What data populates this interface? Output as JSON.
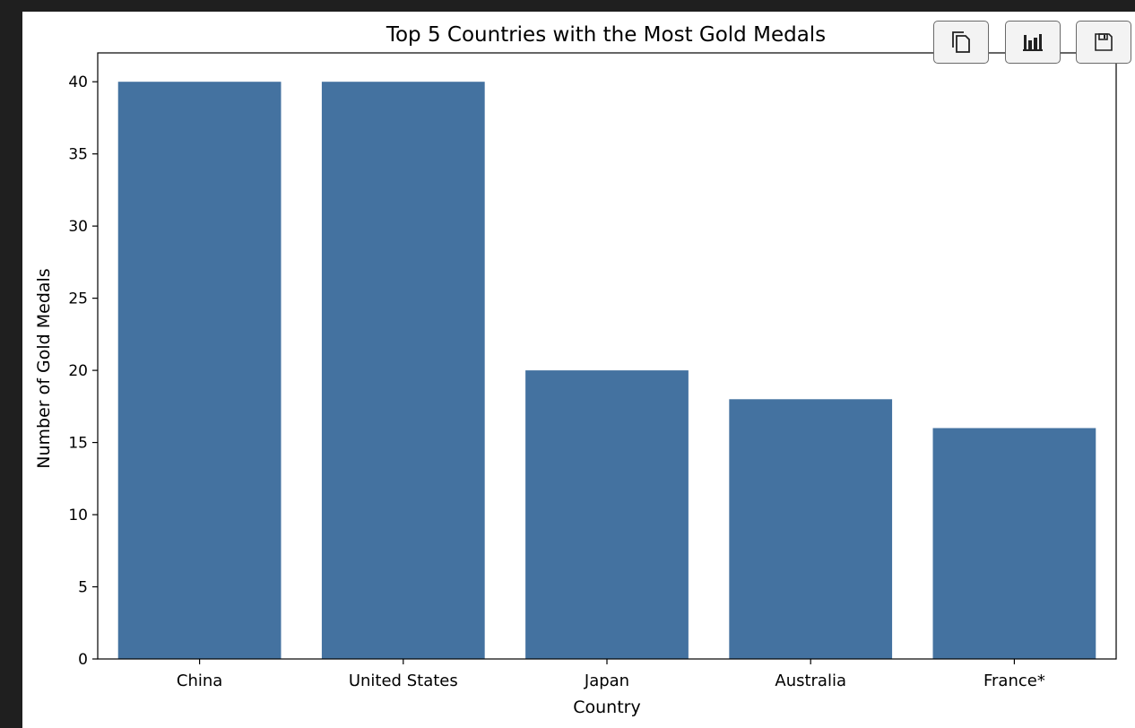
{
  "toolbar": {
    "buttons": [
      {
        "icon": "copy-icon"
      },
      {
        "icon": "bar-chart-icon"
      },
      {
        "icon": "save-icon"
      }
    ]
  },
  "chart_data": {
    "type": "bar",
    "title": "Top 5 Countries with the Most Gold Medals",
    "xlabel": "Country",
    "ylabel": "Number of Gold Medals",
    "categories": [
      "China",
      "United States",
      "Japan",
      "Australia",
      "France*"
    ],
    "values": [
      40,
      40,
      20,
      18,
      16
    ],
    "ylim": [
      0,
      42
    ],
    "yticks": [
      0,
      5,
      10,
      15,
      20,
      25,
      30,
      35,
      40
    ],
    "bar_color": "#4472a0",
    "grid": false,
    "legend": "none"
  }
}
